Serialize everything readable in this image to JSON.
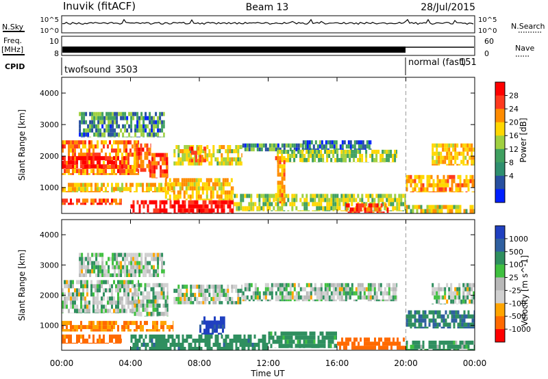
{
  "header": {
    "title": "Inuvik (fitACF)",
    "beam": "Beam 13",
    "date": "28/Jul/2015"
  },
  "status_panels": {
    "nsky_label": "N.Sky",
    "nsky_ticks": [
      "10^5",
      "10^0"
    ],
    "nsearch_label": "N.Search",
    "nsearch_ticks": [
      "10^5",
      "10^0"
    ],
    "freq_label": "Freq.",
    "freq_unit": "[MHz]",
    "freq_ticks": [
      "10",
      "8"
    ],
    "nave_label": "Nave",
    "nave_ticks": [
      "60",
      "0"
    ],
    "cpid_label": "CPID",
    "cpid_segments": [
      {
        "name": "twofsound",
        "id": "3503",
        "start_hour": 0,
        "end_hour": 20
      },
      {
        "name": "normal (fast)",
        "id": "151",
        "start_hour": 20,
        "end_hour": 24
      }
    ]
  },
  "x_axis": {
    "label": "Time UT",
    "tick_labels": [
      "00:00",
      "04:00",
      "08:00",
      "12:00",
      "16:00",
      "20:00",
      "00:00"
    ]
  },
  "chart_data": [
    {
      "type": "heatmap",
      "panel": "power",
      "xlabel": "Time UT",
      "ylabel": "Slant Range [km]",
      "xlim_hours": [
        0,
        24
      ],
      "ylim_km": [
        180,
        4500
      ],
      "y_ticks": [
        1000,
        2000,
        3000,
        4000
      ],
      "mode_change_hour": 20,
      "colorbar": {
        "label": "Power [dB]",
        "tick_labels": [
          "28",
          "24",
          "20",
          "16",
          "12",
          "8",
          "4"
        ],
        "colors": [
          "#ff0000",
          "#ff3a1e",
          "#ff8c00",
          "#ffd700",
          "#a0d040",
          "#40a060",
          "#2f8f6f",
          "#2850a0",
          "#0020ff"
        ]
      },
      "regions": [
        {
          "t0": 0.0,
          "t1": 4.5,
          "r0": 1400,
          "r1": 2500,
          "level": 22
        },
        {
          "t0": 0.0,
          "t1": 3.8,
          "r0": 1600,
          "r1": 2000,
          "level": 28
        },
        {
          "t0": 4.2,
          "t1": 5.2,
          "r0": 1500,
          "r1": 2400,
          "level": 22
        },
        {
          "t0": 5.1,
          "t1": 6.2,
          "r0": 1300,
          "r1": 2100,
          "level": 24
        },
        {
          "t0": 6.5,
          "t1": 10.5,
          "r0": 1700,
          "r1": 2350,
          "level": 16
        },
        {
          "t0": 7.4,
          "t1": 8.4,
          "r0": 1800,
          "r1": 2300,
          "level": 22
        },
        {
          "t0": 0.0,
          "t1": 6.5,
          "r0": 850,
          "r1": 1150,
          "level": 18
        },
        {
          "t0": 0.0,
          "t1": 3.5,
          "r0": 450,
          "r1": 650,
          "level": 24
        },
        {
          "t0": 4.0,
          "t1": 10.0,
          "r0": 180,
          "r1": 600,
          "level": 28
        },
        {
          "t0": 6.0,
          "t1": 10.0,
          "r0": 600,
          "r1": 1300,
          "level": 18
        },
        {
          "t0": 10.0,
          "t1": 20.0,
          "r0": 250,
          "r1": 800,
          "level": 14
        },
        {
          "t0": 10.5,
          "t1": 14.5,
          "r0": 2150,
          "r1": 2400,
          "level": 10
        },
        {
          "t0": 12.5,
          "t1": 19.5,
          "r0": 1800,
          "r1": 2200,
          "level": 14
        },
        {
          "t0": 14.0,
          "t1": 18.0,
          "r0": 2200,
          "r1": 2500,
          "level": 8
        },
        {
          "t0": 12.4,
          "t1": 13.0,
          "r0": 500,
          "r1": 2000,
          "level": 20
        },
        {
          "t0": 16.5,
          "t1": 19.0,
          "r0": 200,
          "r1": 500,
          "level": 26
        },
        {
          "t0": 20.0,
          "t1": 24.0,
          "r0": 850,
          "r1": 1400,
          "level": 20
        },
        {
          "t0": 21.5,
          "t1": 24.0,
          "r0": 1700,
          "r1": 2400,
          "level": 18
        },
        {
          "t0": 20.0,
          "t1": 24.0,
          "r0": 180,
          "r1": 450,
          "level": 16
        },
        {
          "t0": 1.0,
          "t1": 6.0,
          "r0": 2600,
          "r1": 3400,
          "level": 10
        }
      ]
    },
    {
      "type": "heatmap",
      "panel": "velocity",
      "xlabel": "Time UT",
      "ylabel": "Slant Range [km]",
      "xlim_hours": [
        0,
        24
      ],
      "ylim_km": [
        180,
        4500
      ],
      "y_ticks": [
        1000,
        2000,
        3000,
        4000
      ],
      "mode_change_hour": 20,
      "colorbar": {
        "label": "Velocity [m s^-1]",
        "tick_labels": [
          "1000",
          "500",
          "100",
          "25",
          "-25",
          "-100",
          "-500",
          "-1000"
        ],
        "colors": [
          "#2040c0",
          "#3060a0",
          "#2f8f5f",
          "#40c040",
          "#b8b8b8",
          "#d0d0d0",
          "#ffa500",
          "#ff6a00",
          "#ff0000"
        ]
      },
      "regions": [
        {
          "t0": 0.0,
          "t1": 4.5,
          "r0": 1400,
          "r1": 2500,
          "level": 0
        },
        {
          "t0": 4.2,
          "t1": 6.2,
          "r0": 1300,
          "r1": 2400,
          "level": 0
        },
        {
          "t0": 6.5,
          "t1": 10.5,
          "r0": 1700,
          "r1": 2350,
          "level": 0
        },
        {
          "t0": 10.5,
          "t1": 19.5,
          "r0": 1800,
          "r1": 2400,
          "level": 0
        },
        {
          "t0": 0.0,
          "t1": 6.5,
          "r0": 800,
          "r1": 1150,
          "level": -300
        },
        {
          "t0": 0.0,
          "t1": 3.5,
          "r0": 400,
          "r1": 700,
          "level": -400
        },
        {
          "t0": 4.0,
          "t1": 12.0,
          "r0": 180,
          "r1": 700,
          "level": 200
        },
        {
          "t0": 8.0,
          "t1": 9.5,
          "r0": 700,
          "r1": 1300,
          "level": 800
        },
        {
          "t0": 12.0,
          "t1": 16.0,
          "r0": 250,
          "r1": 800,
          "level": 150
        },
        {
          "t0": 16.0,
          "t1": 20.0,
          "r0": 200,
          "r1": 600,
          "level": -450
        },
        {
          "t0": 20.0,
          "t1": 24.0,
          "r0": 900,
          "r1": 1500,
          "level": 300
        },
        {
          "t0": 21.5,
          "t1": 24.0,
          "r0": 1700,
          "r1": 2400,
          "level": 0
        },
        {
          "t0": 20.0,
          "t1": 24.0,
          "r0": 180,
          "r1": 500,
          "level": 120
        },
        {
          "t0": 1.0,
          "t1": 6.0,
          "r0": 2600,
          "r1": 3400,
          "level": 0
        }
      ]
    }
  ]
}
